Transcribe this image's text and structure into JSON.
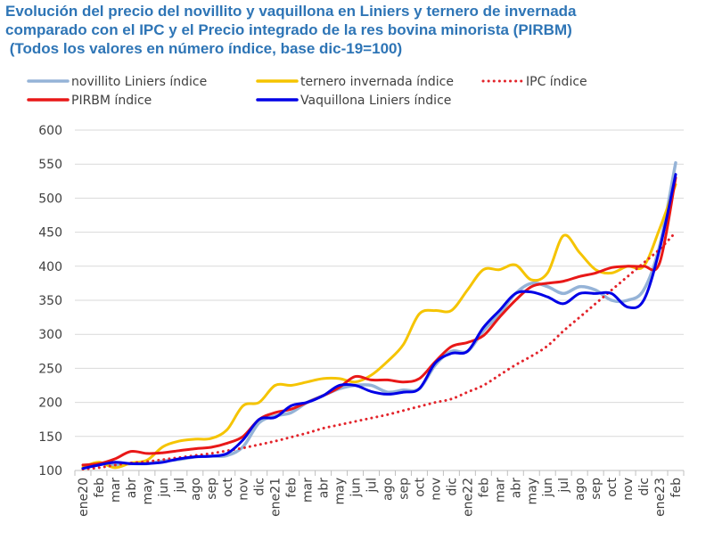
{
  "chart_data": {
    "type": "line",
    "title_lines": [
      "Evolución del precio del novillito y vaquillona en Liniers y ternero de invernada",
      "comparado con el IPC y el Precio integrado de la res bovina minorista (PIRBM)",
      " (Todos los valores en número índice, base dic-19=100)"
    ],
    "xlabel": "",
    "ylabel": "",
    "ylim": [
      100,
      600
    ],
    "yticks": [
      100,
      150,
      200,
      250,
      300,
      350,
      400,
      450,
      500,
      550,
      600
    ],
    "grid": true,
    "legend_position": "top",
    "categories": [
      "ene20",
      "feb",
      "mar",
      "abr",
      "may",
      "jun",
      "jul",
      "ago",
      "sep",
      "oct",
      "nov",
      "dic",
      "ene21",
      "feb",
      "mar",
      "abr",
      "may",
      "jun",
      "jul",
      "ago",
      "sep",
      "oct",
      "nov",
      "dic",
      "ene22",
      "feb",
      "mar",
      "abr",
      "may",
      "jun",
      "jul",
      "ago",
      "sep",
      "oct",
      "nov",
      "dic",
      "ene23",
      "feb"
    ],
    "series": [
      {
        "name": "novillito Liniers índice",
        "color": "#95B3D7",
        "style": "solid",
        "values": [
          103,
          110,
          108,
          110,
          110,
          114,
          116,
          120,
          121,
          122,
          135,
          170,
          180,
          185,
          200,
          210,
          220,
          225,
          225,
          215,
          218,
          220,
          255,
          275,
          275,
          305,
          330,
          360,
          375,
          370,
          360,
          370,
          365,
          350,
          350,
          365,
          430,
          552
        ]
      },
      {
        "name": "ternero invernada índice",
        "color": "#F5C400",
        "style": "solid",
        "values": [
          105,
          112,
          104,
          111,
          115,
          135,
          143,
          146,
          147,
          160,
          195,
          200,
          225,
          225,
          230,
          235,
          235,
          230,
          240,
          260,
          285,
          330,
          335,
          335,
          365,
          395,
          395,
          402,
          380,
          390,
          445,
          420,
          395,
          390,
          400,
          400,
          455,
          520
        ]
      },
      {
        "name": "IPC índice",
        "color": "#E3242B",
        "style": "dotted",
        "values": [
          102,
          104,
          108,
          111,
          113,
          116,
          119,
          122,
          125,
          129,
          133,
          138,
          143,
          149,
          155,
          162,
          167,
          172,
          177,
          182,
          188,
          194,
          200,
          205,
          215,
          225,
          240,
          255,
          268,
          283,
          305,
          325,
          345,
          365,
          385,
          405,
          425,
          450
        ]
      },
      {
        "name": "PIRBM índice",
        "color": "#E81818",
        "style": "solid",
        "values": [
          108,
          110,
          117,
          128,
          125,
          126,
          129,
          132,
          134,
          140,
          150,
          175,
          185,
          190,
          200,
          210,
          222,
          238,
          233,
          233,
          230,
          235,
          260,
          282,
          288,
          298,
          325,
          350,
          370,
          375,
          378,
          385,
          390,
          398,
          400,
          400,
          405,
          530
        ]
      },
      {
        "name": "Vaquillona Liniers índice",
        "color": "#0000E6",
        "style": "solid",
        "values": [
          103,
          108,
          112,
          110,
          110,
          112,
          117,
          120,
          121,
          125,
          145,
          175,
          178,
          195,
          200,
          210,
          225,
          225,
          216,
          212,
          215,
          220,
          258,
          272,
          275,
          310,
          335,
          360,
          362,
          355,
          345,
          360,
          360,
          360,
          340,
          350,
          425,
          535
        ]
      }
    ]
  }
}
